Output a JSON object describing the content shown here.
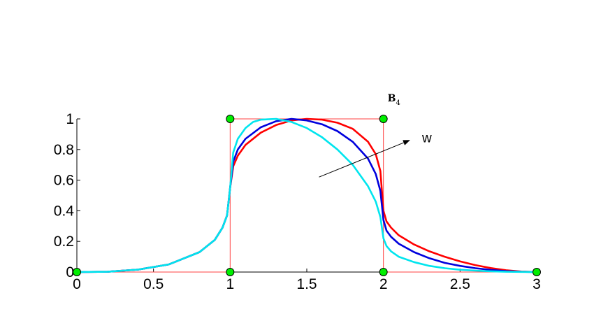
{
  "chart_data": {
    "type": "line",
    "xlim": [
      0,
      3
    ],
    "ylim": [
      0,
      1
    ],
    "x_ticks": [
      "0",
      "0.5",
      "1",
      "1.5",
      "2",
      "2.5",
      "3"
    ],
    "y_ticks": [
      "0",
      "0.2",
      "0.4",
      "0.6",
      "0.8",
      "1"
    ],
    "grid": false,
    "annotations": {
      "label_main": "B",
      "label_sub": "4",
      "arrow_label": "w"
    },
    "control_polygon": {
      "color": "#ff4040",
      "points": [
        [
          0,
          0
        ],
        [
          1,
          0
        ],
        [
          1,
          1
        ],
        [
          2,
          1
        ],
        [
          2,
          0
        ],
        [
          3,
          0
        ]
      ]
    },
    "control_points": {
      "color": "#00ee00",
      "points": [
        [
          0,
          0
        ],
        [
          1,
          0
        ],
        [
          1,
          1
        ],
        [
          2,
          1
        ],
        [
          2,
          0
        ],
        [
          3,
          0
        ]
      ]
    },
    "arrow": {
      "from": [
        1.58,
        0.62
      ],
      "to": [
        2.17,
        0.86
      ]
    },
    "series": [
      {
        "color": "#ff0000",
        "points": [
          [
            0,
            0
          ],
          [
            0.2,
            0.002
          ],
          [
            0.4,
            0.016
          ],
          [
            0.6,
            0.05
          ],
          [
            0.8,
            0.13
          ],
          [
            0.9,
            0.21
          ],
          [
            0.95,
            0.29
          ],
          [
            0.98,
            0.37
          ],
          [
            1.0,
            0.55
          ],
          [
            1.02,
            0.69
          ],
          [
            1.05,
            0.76
          ],
          [
            1.1,
            0.83
          ],
          [
            1.2,
            0.91
          ],
          [
            1.3,
            0.96
          ],
          [
            1.4,
            0.99
          ],
          [
            1.5,
            1.0
          ],
          [
            1.6,
            0.995
          ],
          [
            1.7,
            0.975
          ],
          [
            1.8,
            0.935
          ],
          [
            1.9,
            0.85
          ],
          [
            1.95,
            0.77
          ],
          [
            1.98,
            0.66
          ],
          [
            2.0,
            0.4
          ],
          [
            2.02,
            0.33
          ],
          [
            2.05,
            0.29
          ],
          [
            2.1,
            0.24
          ],
          [
            2.2,
            0.18
          ],
          [
            2.3,
            0.135
          ],
          [
            2.4,
            0.1
          ],
          [
            2.5,
            0.07
          ],
          [
            2.6,
            0.045
          ],
          [
            2.7,
            0.026
          ],
          [
            2.8,
            0.012
          ],
          [
            2.9,
            0.003
          ],
          [
            3.0,
            0
          ]
        ]
      },
      {
        "color": "#0000dd",
        "points": [
          [
            0,
            0
          ],
          [
            0.2,
            0.002
          ],
          [
            0.4,
            0.016
          ],
          [
            0.6,
            0.05
          ],
          [
            0.8,
            0.13
          ],
          [
            0.9,
            0.21
          ],
          [
            0.95,
            0.29
          ],
          [
            0.98,
            0.37
          ],
          [
            1.0,
            0.55
          ],
          [
            1.02,
            0.72
          ],
          [
            1.05,
            0.8
          ],
          [
            1.1,
            0.87
          ],
          [
            1.2,
            0.945
          ],
          [
            1.3,
            0.985
          ],
          [
            1.4,
            1.0
          ],
          [
            1.5,
            0.99
          ],
          [
            1.6,
            0.965
          ],
          [
            1.7,
            0.92
          ],
          [
            1.8,
            0.85
          ],
          [
            1.9,
            0.74
          ],
          [
            1.95,
            0.64
          ],
          [
            1.98,
            0.53
          ],
          [
            2.0,
            0.34
          ],
          [
            2.02,
            0.27
          ],
          [
            2.05,
            0.23
          ],
          [
            2.1,
            0.185
          ],
          [
            2.2,
            0.13
          ],
          [
            2.3,
            0.09
          ],
          [
            2.4,
            0.06
          ],
          [
            2.5,
            0.04
          ],
          [
            2.6,
            0.025
          ],
          [
            2.7,
            0.014
          ],
          [
            2.8,
            0.006
          ],
          [
            2.9,
            0.002
          ],
          [
            3.0,
            0
          ]
        ]
      },
      {
        "color": "#00e5ee",
        "points": [
          [
            0,
            0
          ],
          [
            0.2,
            0.002
          ],
          [
            0.4,
            0.016
          ],
          [
            0.6,
            0.05
          ],
          [
            0.8,
            0.13
          ],
          [
            0.9,
            0.21
          ],
          [
            0.95,
            0.29
          ],
          [
            0.98,
            0.37
          ],
          [
            1.0,
            0.55
          ],
          [
            1.02,
            0.78
          ],
          [
            1.05,
            0.87
          ],
          [
            1.1,
            0.94
          ],
          [
            1.15,
            0.98
          ],
          [
            1.2,
            0.995
          ],
          [
            1.3,
            1.0
          ],
          [
            1.4,
            0.98
          ],
          [
            1.5,
            0.94
          ],
          [
            1.6,
            0.88
          ],
          [
            1.7,
            0.8
          ],
          [
            1.8,
            0.7
          ],
          [
            1.9,
            0.56
          ],
          [
            1.95,
            0.46
          ],
          [
            1.98,
            0.36
          ],
          [
            2.0,
            0.22
          ],
          [
            2.02,
            0.17
          ],
          [
            2.05,
            0.135
          ],
          [
            2.1,
            0.1
          ],
          [
            2.2,
            0.065
          ],
          [
            2.3,
            0.04
          ],
          [
            2.4,
            0.025
          ],
          [
            2.5,
            0.015
          ],
          [
            2.6,
            0.009
          ],
          [
            2.7,
            0.005
          ],
          [
            2.8,
            0.002
          ],
          [
            2.9,
            0.001
          ],
          [
            3.0,
            0
          ]
        ]
      }
    ]
  }
}
